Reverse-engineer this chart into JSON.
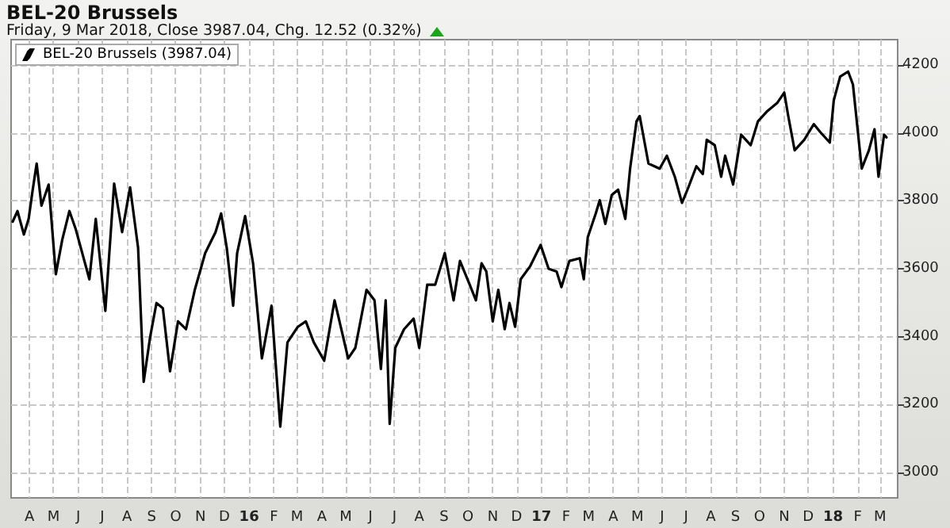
{
  "chart_data": {
    "type": "line",
    "title": "BEL-20 Brussels",
    "subtitle": "Friday, 9 Mar 2018, Close 3987.04, Chg. 12.52 (0.32%)",
    "series": [
      {
        "name": "BEL-20 Brussels (3987.04)",
        "color": "#000000",
        "x": [
          "2015-03-11",
          "2015-03-17",
          "2015-03-25",
          "2015-03-31",
          "2015-04-05",
          "2015-04-10",
          "2015-04-16",
          "2015-04-25",
          "2015-05-04",
          "2015-05-12",
          "2015-05-21",
          "2015-05-29",
          "2015-06-15",
          "2015-06-23",
          "2015-07-05",
          "2015-07-16",
          "2015-07-26",
          "2015-08-05",
          "2015-08-15",
          "2015-08-22",
          "2015-08-30",
          "2015-09-07",
          "2015-09-15",
          "2015-09-24",
          "2015-10-04",
          "2015-10-14",
          "2015-10-25",
          "2015-11-07",
          "2015-11-20",
          "2015-11-27",
          "2015-12-04",
          "2015-12-12",
          "2015-12-17",
          "2015-12-27",
          "2016-01-06",
          "2016-01-17",
          "2016-01-29",
          "2016-02-09",
          "2016-02-18",
          "2016-03-02",
          "2016-03-12",
          "2016-03-22",
          "2016-04-04",
          "2016-04-17",
          "2016-05-04",
          "2016-05-13",
          "2016-05-27",
          "2016-06-06",
          "2016-06-14",
          "2016-06-20",
          "2016-06-25",
          "2016-07-02",
          "2016-07-13",
          "2016-07-25",
          "2016-08-01",
          "2016-08-11",
          "2016-08-21",
          "2016-09-02",
          "2016-09-13",
          "2016-09-21",
          "2016-10-03",
          "2016-10-11",
          "2016-10-18",
          "2016-10-24",
          "2016-11-01",
          "2016-11-08",
          "2016-11-16",
          "2016-11-22",
          "2016-11-29",
          "2016-12-06",
          "2016-12-18",
          "2016-12-31",
          "2017-01-10",
          "2017-01-20",
          "2017-01-26",
          "2017-02-05",
          "2017-02-18",
          "2017-02-23",
          "2017-02-28",
          "2017-03-10",
          "2017-03-15",
          "2017-03-22",
          "2017-03-30",
          "2017-04-07",
          "2017-04-16",
          "2017-04-22",
          "2017-04-30",
          "2017-05-04",
          "2017-05-15",
          "2017-05-29",
          "2017-06-07",
          "2017-06-17",
          "2017-06-26",
          "2017-07-04",
          "2017-07-14",
          "2017-07-22",
          "2017-07-27",
          "2017-08-06",
          "2017-08-14",
          "2017-08-19",
          "2017-08-29",
          "2017-09-08",
          "2017-09-20",
          "2017-09-29",
          "2017-10-11",
          "2017-10-23",
          "2017-11-01",
          "2017-11-06",
          "2017-11-14",
          "2017-11-26",
          "2017-12-08",
          "2017-12-16",
          "2017-12-28",
          "2018-01-02",
          "2018-01-10",
          "2018-01-20",
          "2018-01-26",
          "2018-02-06",
          "2018-02-15",
          "2018-02-22",
          "2018-02-27",
          "2018-03-06",
          "2018-03-09"
        ],
        "values": [
          3739,
          3770,
          3701,
          3747,
          3832,
          3910,
          3786,
          3848,
          3584,
          3685,
          3770,
          3716,
          3569,
          3747,
          3476,
          3851,
          3708,
          3840,
          3662,
          3267,
          3398,
          3499,
          3484,
          3298,
          3445,
          3422,
          3538,
          3646,
          3708,
          3763,
          3662,
          3491,
          3646,
          3755,
          3615,
          3336,
          3491,
          3135,
          3383,
          3429,
          3445,
          3383,
          3329,
          3507,
          3336,
          3367,
          3538,
          3507,
          3305,
          3507,
          3143,
          3367,
          3422,
          3453,
          3367,
          3553,
          3553,
          3646,
          3507,
          3623,
          3554,
          3507,
          3616,
          3592,
          3445,
          3538,
          3422,
          3499,
          3429,
          3569,
          3608,
          3670,
          3600,
          3592,
          3546,
          3623,
          3631,
          3569,
          3693,
          3763,
          3802,
          3732,
          3817,
          3833,
          3747,
          3895,
          4034,
          4050,
          3910,
          3895,
          3933,
          3871,
          3794,
          3840,
          3902,
          3879,
          3980,
          3964,
          3871,
          3933,
          3848,
          3995,
          3964,
          4034,
          4065,
          4088,
          4119,
          4050,
          3949,
          3980,
          4026,
          4003,
          3972,
          4096,
          4166,
          4181,
          4143,
          3895,
          3949,
          4011,
          3871,
          3995,
          3987.04
        ]
      }
    ],
    "xlim": [
      "2015-03-09",
      "2018-03-23"
    ],
    "xticks": [
      {
        "value": "2015-04-01",
        "label": "A"
      },
      {
        "value": "2015-05-01",
        "label": "M"
      },
      {
        "value": "2015-06-01",
        "label": "J"
      },
      {
        "value": "2015-07-01",
        "label": "J"
      },
      {
        "value": "2015-08-01",
        "label": "A"
      },
      {
        "value": "2015-09-01",
        "label": "S"
      },
      {
        "value": "2015-10-01",
        "label": "O"
      },
      {
        "value": "2015-11-01",
        "label": "N"
      },
      {
        "value": "2015-12-01",
        "label": "D"
      },
      {
        "value": "2016-01-01",
        "label": "16"
      },
      {
        "value": "2016-02-01",
        "label": "F"
      },
      {
        "value": "2016-03-01",
        "label": "M"
      },
      {
        "value": "2016-04-01",
        "label": "A"
      },
      {
        "value": "2016-05-01",
        "label": "M"
      },
      {
        "value": "2016-06-01",
        "label": "J"
      },
      {
        "value": "2016-07-01",
        "label": "J"
      },
      {
        "value": "2016-08-01",
        "label": "A"
      },
      {
        "value": "2016-09-01",
        "label": "S"
      },
      {
        "value": "2016-10-01",
        "label": "O"
      },
      {
        "value": "2016-11-01",
        "label": "N"
      },
      {
        "value": "2016-12-01",
        "label": "D"
      },
      {
        "value": "2017-01-01",
        "label": "17"
      },
      {
        "value": "2017-02-01",
        "label": "F"
      },
      {
        "value": "2017-03-01",
        "label": "M"
      },
      {
        "value": "2017-04-01",
        "label": "A"
      },
      {
        "value": "2017-05-01",
        "label": "M"
      },
      {
        "value": "2017-06-01",
        "label": "J"
      },
      {
        "value": "2017-07-01",
        "label": "J"
      },
      {
        "value": "2017-08-01",
        "label": "A"
      },
      {
        "value": "2017-09-01",
        "label": "S"
      },
      {
        "value": "2017-10-01",
        "label": "O"
      },
      {
        "value": "2017-11-01",
        "label": "N"
      },
      {
        "value": "2017-12-01",
        "label": "D"
      },
      {
        "value": "2018-01-01",
        "label": "18"
      },
      {
        "value": "2018-02-01",
        "label": "F"
      },
      {
        "value": "2018-03-01",
        "label": "M"
      }
    ],
    "ylim": [
      2925,
      4275
    ],
    "yticks": [
      3000,
      3200,
      3400,
      3600,
      3800,
      4000,
      4200
    ],
    "grid": true,
    "legend": "top left",
    "marker": "none",
    "line_style": "solid"
  }
}
